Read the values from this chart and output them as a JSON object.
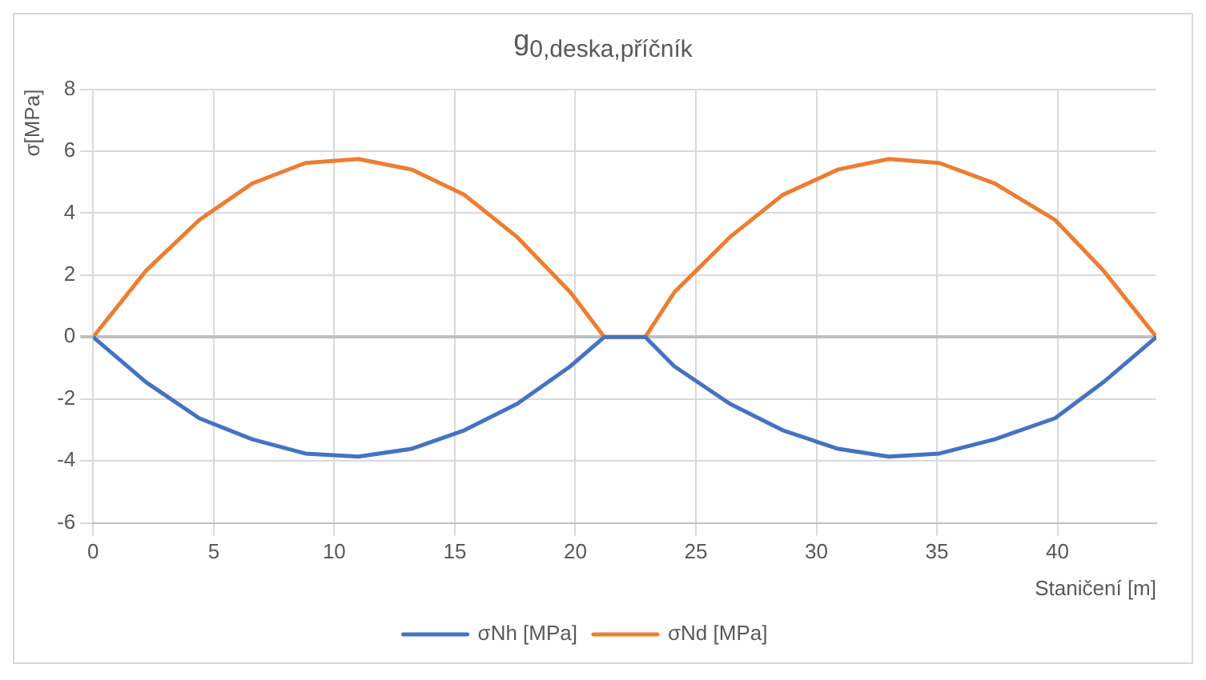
{
  "chart_data": {
    "type": "line",
    "title": "g$_{0,deska,příčník}$",
    "xlabel": "Staničení [m]",
    "ylabel": "σ[MPa]",
    "xlim": [
      0,
      44.1
    ],
    "xticks": [
      0,
      5,
      10,
      15,
      20,
      25,
      30,
      35,
      40
    ],
    "ylim": [
      -6,
      8
    ],
    "yticks": [
      -6,
      -4,
      -2,
      0,
      2,
      4,
      6,
      8
    ],
    "grid": true,
    "legend": "bottom",
    "marker": "none",
    "line_style": "solid",
    "x": [
      0,
      2.2,
      4.4,
      6.6,
      8.8,
      11,
      13.2,
      15.4,
      17.6,
      19.8,
      21.2,
      22.9,
      24.1,
      26.4,
      28.6,
      30.9,
      33,
      35.1,
      37.4,
      39.9,
      41.9,
      44.1
    ],
    "series": [
      {
        "name": "σNh [MPa]",
        "color": "#4472c4",
        "values": [
          0,
          -1.46,
          -2.62,
          -3.3,
          -3.76,
          -3.86,
          -3.61,
          -3.01,
          -2.15,
          -0.94,
          0,
          0,
          -0.94,
          -2.15,
          -3.01,
          -3.61,
          -3.86,
          -3.76,
          -3.3,
          -2.62,
          -1.46,
          0
        ]
      },
      {
        "name": "σNd [MPa]",
        "color": "#ed7d31",
        "values": [
          0,
          2.15,
          3.78,
          4.96,
          5.62,
          5.75,
          5.41,
          4.59,
          3.22,
          1.44,
          0,
          0,
          1.44,
          3.22,
          4.59,
          5.41,
          5.75,
          5.62,
          4.96,
          3.78,
          2.15,
          0
        ]
      }
    ]
  }
}
